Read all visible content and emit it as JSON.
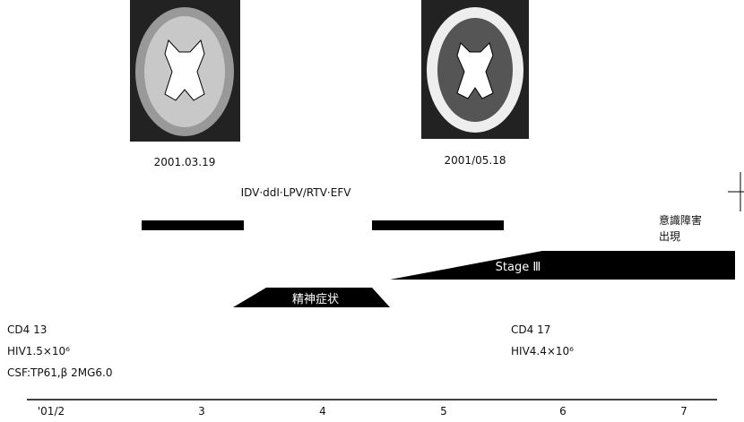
{
  "images": [
    {
      "date": "2001.03.19"
    },
    {
      "date": "2001/05.18"
    }
  ],
  "treatment": {
    "label": "IDV·ddI·LPV/RTV·EFV"
  },
  "stage": {
    "label": "Stage Ⅲ"
  },
  "psychiatric": {
    "label": "精神症状"
  },
  "consciousness": {
    "lines": [
      "意識障害",
      "出現"
    ]
  },
  "labs": [
    {
      "lines": [
        "CD4  13",
        "HIV1.5×10⁶",
        "CSF:TP61,β 2MG6.0"
      ]
    },
    {
      "lines": [
        "CD4  17",
        "HIV4.4×10⁶"
      ]
    }
  ],
  "axis": {
    "labels": [
      "'01/2",
      "3",
      "4",
      "5",
      "6",
      "7"
    ]
  }
}
